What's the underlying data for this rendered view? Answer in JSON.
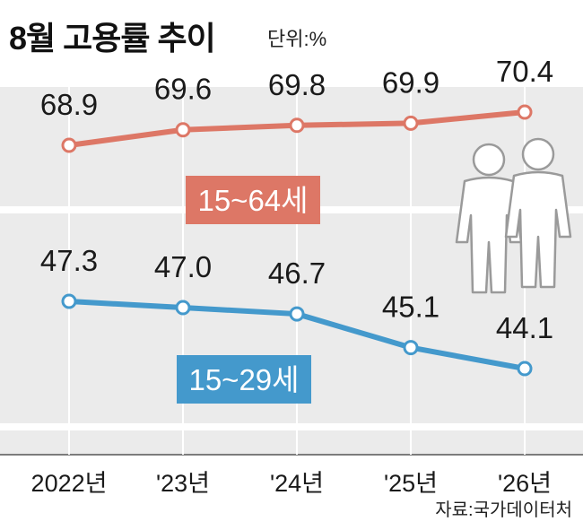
{
  "title": "8월 고용률 추이",
  "unit": "단위:%",
  "source": "자료:국가데이터처",
  "colors": {
    "series_1": "#dd7766",
    "series_2": "#4499cc",
    "panel": "#ebebeb",
    "text": "#1a1a1a"
  },
  "icons": [
    "woman-figure-icon",
    "man-figure-icon"
  ],
  "chart_data": {
    "type": "line",
    "title": "8월 고용률 추이",
    "unit_label": "단위:%",
    "categories": [
      "2022년",
      "'23년",
      "'24년",
      "'25년",
      "'26년"
    ],
    "series": [
      {
        "name": "15~64세",
        "values": [
          68.9,
          69.6,
          69.8,
          69.9,
          70.4
        ]
      },
      {
        "name": "15~29세",
        "values": [
          47.3,
          47.0,
          46.7,
          45.1,
          44.1
        ]
      }
    ],
    "grid": false,
    "legend": "inline labels on lines"
  }
}
